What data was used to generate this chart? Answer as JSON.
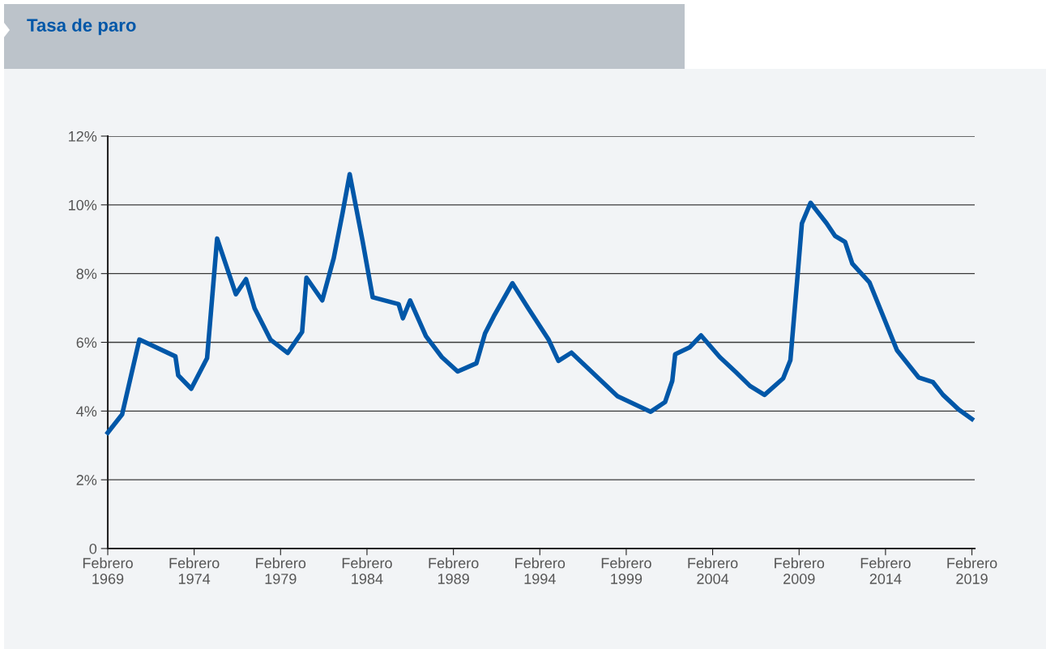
{
  "chart_data": {
    "type": "line",
    "title": "Tasa de paro",
    "x": [
      "1969-02",
      "1969-12",
      "1970-12",
      "1973-01",
      "1973-03",
      "1973-12",
      "1974-11",
      "1975-06",
      "1976-07",
      "1977-02",
      "1977-08",
      "1978-07",
      "1979-07",
      "1980-05",
      "1980-08",
      "1981-07",
      "1982-03",
      "1982-09",
      "1983-02",
      "1983-11",
      "1984-06",
      "1985-12",
      "1986-03",
      "1986-08",
      "1987-07",
      "1988-06",
      "1989-05",
      "1990-06",
      "1990-12",
      "1991-06",
      "1992-07",
      "1993-06",
      "1994-08",
      "1995-03",
      "1995-12",
      "1998-08",
      "2000-07",
      "2001-05",
      "2001-10",
      "2001-12",
      "2002-10",
      "2003-06",
      "2004-07",
      "2005-06",
      "2006-04",
      "2007-02",
      "2008-03",
      "2008-08",
      "2009-01",
      "2009-04",
      "2009-10",
      "2010-09",
      "2011-03",
      "2011-10",
      "2012-03",
      "2013-03",
      "2014-10",
      "2016-01",
      "2016-11",
      "2017-06",
      "2018-05",
      "2019-02"
    ],
    "series": [
      {
        "color": "#0057a8",
        "values": [
          3.37,
          3.9,
          6.08,
          5.59,
          5.04,
          4.65,
          5.54,
          9.02,
          7.4,
          7.84,
          6.99,
          6.08,
          5.69,
          6.3,
          7.88,
          7.22,
          8.45,
          9.75,
          10.89,
          8.94,
          7.31,
          7.11,
          6.7,
          7.22,
          6.18,
          5.57,
          5.15,
          5.39,
          6.26,
          6.75,
          7.72,
          6.99,
          6.09,
          5.46,
          5.7,
          4.43,
          3.98,
          4.26,
          4.88,
          5.65,
          5.85,
          6.2,
          5.57,
          5.14,
          4.73,
          4.47,
          4.95,
          5.48,
          7.96,
          9.46,
          10.06,
          9.47,
          9.1,
          8.92,
          8.29,
          7.74,
          5.77,
          4.98,
          4.84,
          4.47,
          4.04,
          3.77
        ]
      }
    ],
    "xlim": [
      "1969-02",
      "2019-04"
    ],
    "xticks": [
      {
        "value": "1969-02",
        "label": "Febrero\n1969"
      },
      {
        "value": "1974-02",
        "label": "Febrero\n1974"
      },
      {
        "value": "1979-02",
        "label": "Febrero\n1979"
      },
      {
        "value": "1984-02",
        "label": "Febrero\n1984"
      },
      {
        "value": "1989-02",
        "label": "Febrero\n1989"
      },
      {
        "value": "1994-02",
        "label": "Febrero\n1994"
      },
      {
        "value": "1999-02",
        "label": "Febrero\n1999"
      },
      {
        "value": "2004-02",
        "label": "Febrero\n2004"
      },
      {
        "value": "2009-02",
        "label": "Febrero\n2009"
      },
      {
        "value": "2014-02",
        "label": "Febrero\n2014"
      },
      {
        "value": "2019-02",
        "label": "Febrero\n2019"
      }
    ],
    "ylim": [
      0,
      12
    ],
    "yticks": [
      0,
      {
        "value": 2,
        "label": "2%"
      },
      {
        "value": 4,
        "label": "4%"
      },
      {
        "value": 6,
        "label": "6%"
      },
      {
        "value": 8,
        "label": "8%"
      },
      {
        "value": 10,
        "label": "10%"
      },
      {
        "value": 12,
        "label": "12%"
      }
    ],
    "grid": "y",
    "legend": false,
    "marker": "none",
    "line_style": "solid"
  }
}
